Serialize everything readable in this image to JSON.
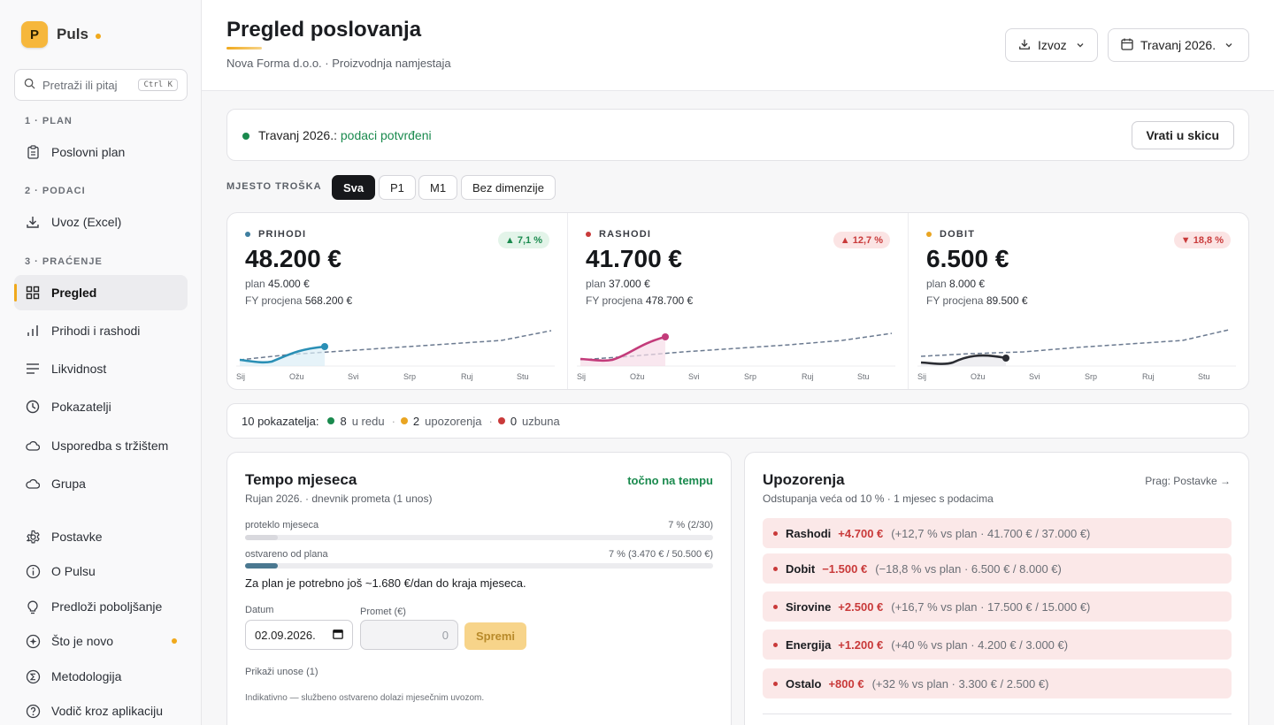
{
  "brand": {
    "logo_letter": "P",
    "name": "Puls"
  },
  "search": {
    "placeholder": "Pretraži ili pitaj",
    "shortcut": "Ctrl K"
  },
  "sidebar": {
    "sections": [
      {
        "label": "1 · PLAN"
      },
      {
        "label": "2 · PODACI"
      },
      {
        "label": "3 · PRAĆENJE"
      }
    ],
    "items": [
      {
        "label": "Poslovni plan",
        "icon": "clipboard-icon"
      },
      {
        "label": "Uvoz (Excel)",
        "icon": "download-icon"
      },
      {
        "label": "Pregled",
        "icon": "grid-icon",
        "active": true
      },
      {
        "label": "Prihodi i rashodi",
        "icon": "bar-chart-icon"
      },
      {
        "label": "Likvidnost",
        "icon": "lines-icon"
      },
      {
        "label": "Pokazatelji",
        "icon": "clock-icon"
      },
      {
        "label": "Usporedba s tržištem",
        "icon": "cloud-icon"
      },
      {
        "label": "Grupa",
        "icon": "cloud-icon"
      },
      {
        "label": "Postavke",
        "icon": "gear-icon"
      },
      {
        "label": "O Pulsu",
        "icon": "info-icon"
      },
      {
        "label": "Predloži poboljšanje",
        "icon": "lightbulb-icon"
      },
      {
        "label": "Što je novo",
        "icon": "sparkle-icon",
        "badge_dot": true
      },
      {
        "label": "Metodologija",
        "icon": "sigma-icon"
      },
      {
        "label": "Vodič kroz aplikaciju",
        "icon": "help-icon"
      }
    ]
  },
  "header": {
    "title": "Pregled poslovanja",
    "subtitle": "Nova Forma d.o.o. · Proizvodnja namjestaja",
    "export_label": "Izvoz",
    "period_label": "Travanj 2026."
  },
  "status": {
    "period": "Travanj 2026.:",
    "state": "podaci potvrđeni",
    "revert_label": "Vrati u skicu"
  },
  "filter": {
    "label": "MJESTO TROŠKA",
    "chips": [
      "Sva",
      "P1",
      "M1",
      "Bez dimenzije"
    ],
    "selected": "Sva"
  },
  "months": [
    "Sij",
    "Ožu",
    "Svi",
    "Srp",
    "Ruj",
    "Stu"
  ],
  "kpis": [
    {
      "label": "PRIHODI",
      "value": "48.200 €",
      "plan_label": "plan",
      "plan": "45.000 €",
      "fy_label": "FY procjena",
      "fy": "568.200 €",
      "change": "▲ 7,1 %",
      "color": "#2a8fb5"
    },
    {
      "label": "RASHODI",
      "value": "41.700 €",
      "plan_label": "plan",
      "plan": "37.000 €",
      "fy_label": "FY procjena",
      "fy": "478.700 €",
      "change": "▲ 12,7 %",
      "color": "#c33b7a"
    },
    {
      "label": "DOBIT",
      "value": "6.500 €",
      "plan_label": "plan",
      "plan": "8.000 €",
      "fy_label": "FY procjena",
      "fy": "89.500 €",
      "change": "▼ 18,8 %",
      "color": "#2b2d33"
    }
  ],
  "indicators": {
    "total": "10 pokazatelja:",
    "ok_count": "8",
    "ok_label": "u redu",
    "warn_count": "2",
    "warn_label": "upozorenja",
    "alert_count": "0",
    "alert_label": "uzbuna"
  },
  "tempo": {
    "title": "Tempo mjeseca",
    "status": "točno na tempu",
    "subtitle": "Rujan 2026. · dnevnik prometa (1 unos)",
    "elapsed_label": "proteklo mjeseca",
    "elapsed_value": "7 % (2/30)",
    "elapsed_pct": 0.07,
    "achieved_label": "ostvareno od plana",
    "achieved_value": "7 % (3.470 € / 50.500 €)",
    "achieved_pct": 0.07,
    "need_text": "Za plan je potrebno još ~1.680 €/dan do kraja mjeseca.",
    "date_label": "Datum",
    "date_value": "02.09.2026.",
    "amount_label": "Promet (€)",
    "amount_placeholder": "0",
    "save_label": "Spremi",
    "show_entries": "Prikaži unose (1)",
    "note": "Indikativno — službeno ostvareno dolazi mjesečnim uvozom."
  },
  "warnings": {
    "title": "Upozorenja",
    "subtitle": "Odstupanja veća od 10 % · 1 mjesec s podacima",
    "threshold_link": "Prag: Postavke →",
    "items": [
      {
        "name": "Rashodi",
        "delta": "+4.700 €",
        "detail": "(+12,7 % vs plan · 41.700 € / 37.000 €)"
      },
      {
        "name": "Dobit",
        "delta": "−1.500 €",
        "detail": "(−18,8 % vs plan · 6.500 € / 8.000 €)"
      },
      {
        "name": "Sirovine",
        "delta": "+2.500 €",
        "detail": "(+16,7 % vs plan · 17.500 € / 15.000 €)"
      },
      {
        "name": "Energija",
        "delta": "+1.200 €",
        "detail": "(+40 % vs plan · 4.200 € / 3.000 €)"
      },
      {
        "name": "Ostalo",
        "delta": "+800 €",
        "detail": "(+32 % vs plan · 3.300 € / 2.500 €)"
      }
    ]
  },
  "colors": {
    "accent": "#f0a91c",
    "ok": "#1a8a4e",
    "warn": "#e9a522",
    "alert": "#c93a3a"
  }
}
